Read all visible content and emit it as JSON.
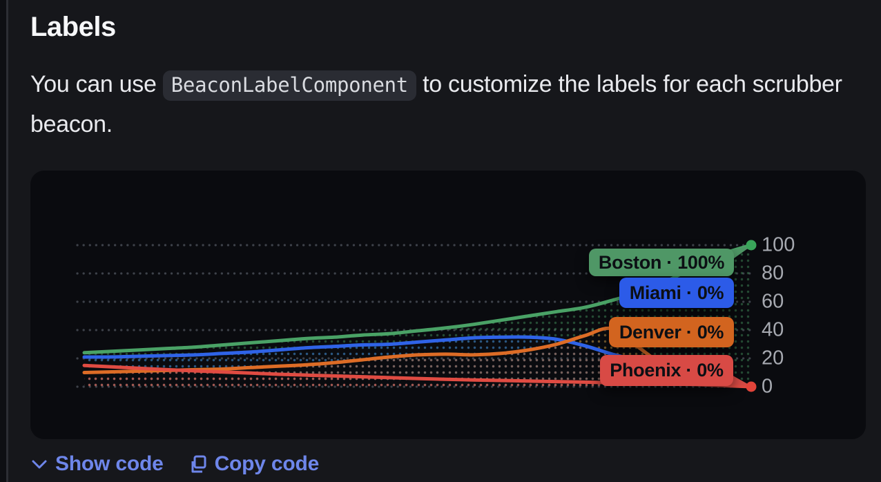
{
  "heading": "Labels",
  "paragraph": {
    "before": "You can use ",
    "code": "BeaconLabelComponent",
    "after": " to customize the labels for each scrubber",
    "line2": "beacon."
  },
  "actions": {
    "show_code": "Show code",
    "copy_code": "Copy code"
  },
  "theme": {
    "page_bg": "#16171b",
    "card_bg": "#0a0b0f",
    "link_color": "#6e86ea",
    "tick_color": "#a6a9b0",
    "grid_color": "#3e424a"
  },
  "chart_data": {
    "type": "line",
    "title": "",
    "xlabel": "",
    "ylabel": "",
    "ylim": [
      0,
      100
    ],
    "yticks": [
      100,
      80,
      60,
      40,
      20,
      0
    ],
    "grid": "dotted",
    "legend_position": "none",
    "x": [
      0,
      1,
      2,
      3,
      4,
      5,
      6,
      7,
      8,
      9,
      10,
      11,
      12,
      13,
      14,
      15,
      16,
      17,
      18,
      19,
      20,
      21,
      22,
      23,
      24
    ],
    "series": [
      {
        "name": "Boston",
        "line_color": "#4aa266",
        "pill_color": "#4f9766",
        "pill_label": "Boston · 100%",
        "end_value": 100,
        "values": [
          24,
          25,
          26,
          27,
          28,
          29.5,
          31,
          32.5,
          34,
          35,
          36.5,
          37.5,
          39.5,
          41.5,
          44,
          47,
          50,
          53,
          56,
          61,
          67,
          75,
          85,
          94,
          100
        ]
      },
      {
        "name": "Miami",
        "line_color": "#2f63e7",
        "pill_color": "#2c5be8",
        "pill_label": "Miami · 0%",
        "end_value": 0,
        "values": [
          21,
          21,
          21.5,
          22,
          22.5,
          23.5,
          24.5,
          26,
          27.5,
          28.5,
          29.5,
          30,
          31.5,
          33,
          34.5,
          35,
          35,
          33.5,
          29,
          23,
          18,
          12,
          6.5,
          2,
          0
        ]
      },
      {
        "name": "Denver",
        "line_color": "#dd6c26",
        "pill_color": "#d2641f",
        "pill_label": "Denver · 0%",
        "end_value": 0,
        "values": [
          10,
          10.5,
          11,
          11.5,
          12,
          12.5,
          13.5,
          14.5,
          15.5,
          17,
          19,
          21,
          22.5,
          23,
          22.5,
          23.5,
          26,
          30,
          36,
          41,
          27,
          13,
          5,
          1.5,
          0
        ]
      },
      {
        "name": "Phoenix",
        "line_color": "#e04b42",
        "pill_color": "#d84a45",
        "pill_label": "Phoenix · 0%",
        "end_value": 0,
        "values": [
          15,
          14,
          13,
          12,
          11.2,
          10.4,
          9.6,
          8.8,
          8.2,
          7.6,
          7,
          6.4,
          5.8,
          5.2,
          4.8,
          4.4,
          4,
          3.6,
          3.2,
          2.8,
          2.4,
          2,
          1.5,
          0.8,
          0
        ]
      }
    ],
    "beacons": [
      {
        "series": "Boston",
        "value": 100,
        "color": "#3aa55a"
      },
      {
        "series": "Phoenix",
        "value": 0,
        "color": "#e2443a"
      }
    ]
  }
}
